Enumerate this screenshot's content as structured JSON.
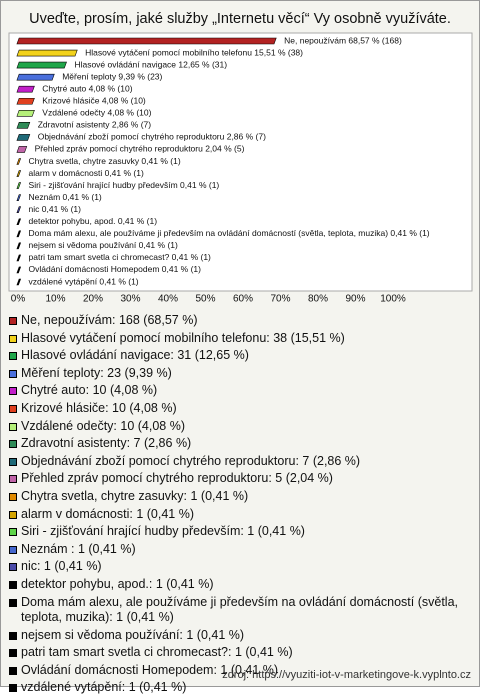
{
  "chart_data": {
    "type": "bar",
    "orientation": "horizontal",
    "title": "Uveďte, prosím, jaké služby „Internetu věcí“ Vy osobně využíváte.",
    "categories": [
      "Ne, nepoužívám",
      "Hlasové vytáčení pomocí mobilního telefonu",
      "Hlasové ovládání navigace",
      "Měření teploty",
      "Chytré auto",
      "Krizové hlásiče",
      "Vzdálené odečty",
      "Zdravotní asistenty",
      "Objednávání zboží pomocí chytrého reproduktoru",
      "Přehled zpráv pomocí chytrého reproduktoru",
      "Chytra svetla, chytre zasuvky",
      "alarm v domácnosti",
      "Siri - zjišťování hrající hudby především",
      "Neznám ",
      "nic",
      "detektor pohybu, apod.",
      "Doma mám alexu, ale používáme ji především na ovládání domácností (světla, teplota, muzika)",
      "nejsem si vědoma používání",
      "patri tam smart svetla ci chromecast?",
      "Ovládání domácnosti Homepodem",
      "vzdálené vytápění"
    ],
    "values": [
      68.57,
      15.51,
      12.65,
      9.39,
      4.08,
      4.08,
      4.08,
      2.86,
      2.86,
      2.04,
      0.41,
      0.41,
      0.41,
      0.41,
      0.41,
      0.41,
      0.41,
      0.41,
      0.41,
      0.41,
      0.41
    ],
    "value_labels": [
      "Ne, nepoužívám 68,57 % (168)",
      "Hlasové vytáčení pomocí mobilního telefonu 15,51 % (38)",
      "Hlasové ovládání navigace 12,65 % (31)",
      "Měření teploty 9,39 % (23)",
      "Chytré auto 4,08 % (10)",
      "Krizové hlásiče 4,08 % (10)",
      "Vzdálené odečty 4,08 % (10)",
      "Zdravotní asistenty 2,86 % (7)",
      "Objednávání zboží pomocí chytrého reproduktoru 2,86 % (7)",
      "Přehled zpráv pomocí chytrého reproduktoru 2,04 % (5)",
      "Chytra svetla, chytre zasuvky 0,41 % (1)",
      "alarm v domácnosti 0,41 % (1)",
      "Siri - zjišťování hrající hudby především 0,41 % (1)",
      "Neznám  0,41 % (1)",
      "nic 0,41 % (1)",
      "detektor pohybu, apod. 0,41 % (1)",
      "Doma mám alexu, ale používáme ji především na ovládání domácností (světla, teplota, muzika) 0,41 % (1)",
      "nejsem si vědoma používání 0,41 % (1)",
      "patri tam smart svetla ci chromecast? 0,41 % (1)",
      "Ovládání domácnosti Homepodem 0,41 % (1)",
      "vzdálené vytápění 0,41 % (1)"
    ],
    "legend": [
      "Ne, nepoužívám: 168 (68,57 %)",
      "Hlasové vytáčení pomocí mobilního telefonu: 38 (15,51 %)",
      "Hlasové ovládání navigace: 31 (12,65 %)",
      "Měření teploty: 23 (9,39 %)",
      "Chytré auto: 10 (4,08 %)",
      "Krizové hlásiče: 10 (4,08 %)",
      "Vzdálené odečty: 10 (4,08 %)",
      "Zdravotní asistenty: 7 (2,86 %)",
      "Objednávání zboží pomocí chytrého reproduktoru: 7 (2,86 %)",
      "Přehled zpráv pomocí chytrého reproduktoru: 5 (2,04 %)",
      "Chytra svetla, chytre zasuvky: 1 (0,41 %)",
      "alarm v domácnosti: 1 (0,41 %)",
      "Siri - zjišťování hrající hudby především: 1 (0,41 %)",
      "Neznám : 1 (0,41 %)",
      "nic: 1 (0,41 %)",
      "detektor pohybu, apod.: 1 (0,41 %)",
      "Doma mám alexu, ale používáme ji především na ovládání domácností (světla, teplota, muzika): 1 (0,41 %)",
      "nejsem si vědoma používání: 1 (0,41 %)",
      "patri tam smart svetla ci chromecast?: 1 (0,41 %)",
      "Ovládání domácnosti Homepodem: 1 (0,41 %)",
      "vzdálené vytápění: 1 (0,41 %)"
    ],
    "colors": [
      "#b22222",
      "#f2d21b",
      "#1fa64a",
      "#4a6fdc",
      "#c21fc9",
      "#e0401f",
      "#b5f07a",
      "#2e8b57",
      "#1f6a78",
      "#c064a8",
      "#e08a00",
      "#d4a400",
      "#5fd44a",
      "#4466cc",
      "#4a4aa8",
      "#000000",
      "#000000",
      "#000000",
      "#000000",
      "#000000",
      "#000000"
    ],
    "xlim": [
      0,
      100
    ],
    "xticks": [
      {
        "value": 0,
        "label": "0%"
      },
      {
        "value": 10,
        "label": "10%"
      },
      {
        "value": 20,
        "label": "20%"
      },
      {
        "value": 30,
        "label": "30%"
      },
      {
        "value": 40,
        "label": "40%"
      },
      {
        "value": 50,
        "label": "50%"
      },
      {
        "value": 60,
        "label": "60%"
      },
      {
        "value": 70,
        "label": "70%"
      },
      {
        "value": 80,
        "label": "80%"
      },
      {
        "value": 90,
        "label": "90%"
      },
      {
        "value": 100,
        "label": "100%"
      }
    ],
    "grid": false,
    "source": "zdroj: https://vyuziti-iot-v-marketingove-k.vyplnto.cz"
  }
}
